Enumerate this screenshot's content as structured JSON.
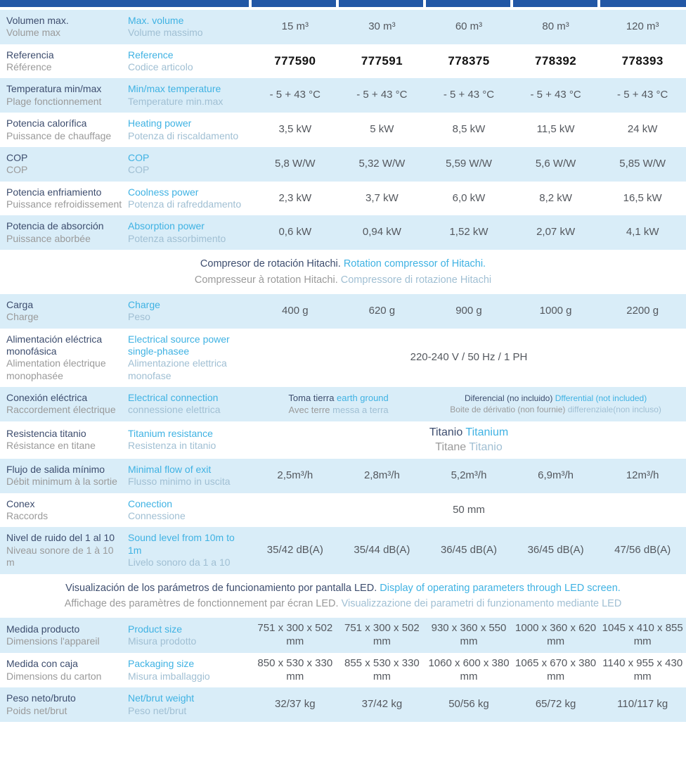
{
  "colors": {
    "header_bar": "#2257a5",
    "row_alt_blue": "#d9edf8",
    "label_spanish": "#3d4d6e",
    "label_french": "#9a9a9a",
    "label_english": "#3fb2e3",
    "label_italian": "#a0bfd3",
    "value_text": "#54585e",
    "reference_text": "#121212"
  },
  "table": {
    "data_column_count": 5,
    "rows": [
      {
        "kind": "spec",
        "bg": "blue",
        "label_es": "Volumen max.",
        "label_fr": "Volume max",
        "label_en": "Max. volume",
        "label_it": "Volume massimo",
        "values": [
          "15 m³",
          "30 m³",
          "60 m³",
          "80 m³",
          "120 m³"
        ]
      },
      {
        "kind": "spec",
        "bg": "white",
        "emphasis": true,
        "label_es": "Referencia",
        "label_fr": "Référence",
        "label_en": "Reference",
        "label_it": "Codice articolo",
        "values": [
          "777590",
          "777591",
          "778375",
          "778392",
          "778393"
        ]
      },
      {
        "kind": "spec",
        "bg": "blue",
        "label_es": "Temperatura min/max",
        "label_fr": "Plage fonctionnement",
        "label_en": "Min/max temperature",
        "label_it": "Temperature min.max",
        "values": [
          "- 5 + 43 °C",
          "- 5 + 43 °C",
          "- 5 + 43 °C",
          "- 5 + 43 °C",
          "- 5 + 43 °C"
        ]
      },
      {
        "kind": "spec",
        "bg": "white",
        "label_es": "Potencia calorífica",
        "label_fr": "Puissance de chauffage",
        "label_en": "Heating power",
        "label_it": "Potenza di riscaldamento",
        "values": [
          "3,5 kW",
          "5 kW",
          "8,5 kW",
          "11,5 kW",
          "24 kW"
        ]
      },
      {
        "kind": "spec",
        "bg": "blue",
        "label_es": "COP",
        "label_fr": "COP",
        "label_en": "COP",
        "label_it": "COP",
        "values": [
          "5,8 W/W",
          "5,32 W/W",
          "5,59 W/W",
          "5,6 W/W",
          "5,85 W/W"
        ]
      },
      {
        "kind": "spec",
        "bg": "white",
        "label_es": "Potencia enfriamiento",
        "label_fr": "Puissance refroidissement",
        "label_en": "Coolness power",
        "label_it": "Potenza di rafreddamento",
        "values": [
          "2,3 kW",
          "3,7 kW",
          "6,0 kW",
          "8,2 kW",
          "16,5 kW"
        ]
      },
      {
        "kind": "spec",
        "bg": "blue",
        "label_es": "Potencia de absorción",
        "label_fr": "Puissance aborbée",
        "label_en": "Absorption power",
        "label_it": "Potenza assorbimento",
        "values": [
          "0,6 kW",
          "0,94 kW",
          "1,52 kW",
          "2,07 kW",
          "4,1 kW"
        ]
      },
      {
        "kind": "note",
        "bg": "white",
        "name": "compressor-note",
        "lines": [
          [
            [
              "Compresor de rotación Hitachi. ",
              "es"
            ],
            [
              "Rotation compressor of Hitachi.",
              "en"
            ]
          ],
          [
            [
              "Compresseur à rotation Hitachi. ",
              "fr"
            ],
            [
              "Compressore di rotazione Hitachi",
              "it"
            ]
          ]
        ]
      },
      {
        "kind": "spec",
        "bg": "blue",
        "label_es": "Carga",
        "label_fr": "Charge",
        "label_en": "Charge",
        "label_it": "Peso",
        "values": [
          "400 g",
          "620 g",
          "900 g",
          "1000 g",
          "2200 g"
        ]
      },
      {
        "kind": "span",
        "bg": "white",
        "label_es": "Alimentación eléctrica monofásica",
        "label_fr": "Alimentation électrique monophasée",
        "label_en": "Electrical source power single-phasee",
        "label_it": "Alimentazione elettrica monofase",
        "value": "220-240 V / 50 Hz / 1 PH"
      },
      {
        "kind": "multi",
        "bg": "blue",
        "label_es": "Conexión eléctrica",
        "label_fr": "Raccordement électrique",
        "label_en": "Electrical connection",
        "label_it": "connessione elettrica",
        "cells": [
          {
            "span": 2,
            "size": "sm",
            "lines": [
              [
                [
                  "Toma tierra ",
                  "es"
                ],
                [
                  "earth ground",
                  "en"
                ]
              ],
              [
                [
                  "Avec terre ",
                  "fr"
                ],
                [
                  "messa a terra",
                  "it"
                ]
              ]
            ]
          },
          {
            "span": 3,
            "size": "xs",
            "lines": [
              [
                [
                  "Diferencial (no incluido) ",
                  "es"
                ],
                [
                  "Dfferential (not included)",
                  "en"
                ]
              ],
              [
                [
                  "Boite de dérivatio (non fournie)  ",
                  "fr"
                ],
                [
                  "differenziale(non incluso)",
                  "it"
                ]
              ]
            ]
          }
        ]
      },
      {
        "kind": "multi",
        "bg": "white",
        "label_es": "Resistencia titanio",
        "label_fr": "Résistance en titane",
        "label_en": "Titanium resistance",
        "label_it": "Resistenza in titanio",
        "cells": [
          {
            "span": 5,
            "size": "md",
            "lines": [
              [
                [
                  "Titanio ",
                  "es"
                ],
                [
                  "Titanium",
                  "en"
                ]
              ],
              [
                [
                  "Titane ",
                  "fr"
                ],
                [
                  "Titanio",
                  "it"
                ]
              ]
            ]
          }
        ]
      },
      {
        "kind": "spec",
        "bg": "blue",
        "label_es": "Flujo de salida mínimo",
        "label_fr": "Débit minimum à la sortie",
        "label_en": "Minimal flow of exit",
        "label_it": "Flusso minimo in uscita",
        "values": [
          "2,5m³/h",
          "2,8m³/h",
          "5,2m³/h",
          "6,9m³/h",
          "12m³/h"
        ]
      },
      {
        "kind": "span",
        "bg": "white",
        "label_es": "Conex",
        "label_fr": "Raccords",
        "label_en": "Conection",
        "label_it": "Connessione",
        "value": "50 mm"
      },
      {
        "kind": "spec",
        "bg": "blue",
        "label_es": "Nivel de ruido del 1 al 10",
        "label_fr": "Niveau sonore de 1 à 10 m",
        "label_en": "Sound level from 10m to 1m",
        "label_it": "Livelo sonoro da 1 a 10",
        "values": [
          "35/42 dB(A)",
          "35/44 dB(A)",
          "36/45 dB(A)",
          "36/45 dB(A)",
          "47/56 dB(A)"
        ]
      },
      {
        "kind": "note",
        "bg": "white",
        "name": "led-display-note",
        "lines": [
          [
            [
              "Visualización de los parámetros de funcionamiento por pantalla LED. ",
              "es"
            ],
            [
              "Display of operating parameters through LED screen.",
              "en"
            ]
          ],
          [
            [
              "Affichage des paramètres de fonctionnement par écran LED. ",
              "fr"
            ],
            [
              "Visualizzazione dei parametri di funzionamento mediante LED",
              "it"
            ]
          ]
        ]
      },
      {
        "kind": "spec",
        "bg": "blue",
        "label_es": "Medida producto",
        "label_fr": "Dimensions l'appareil",
        "label_en": "Product size",
        "label_it": "Misura prodotto",
        "values": [
          "751 x 300 x 502 mm",
          "751 x 300 x 502 mm",
          "930 x 360 x 550 mm",
          "1000 x 360 x 620 mm",
          "1045 x 410 x 855 mm"
        ]
      },
      {
        "kind": "spec",
        "bg": "white",
        "label_es": "Medida con caja",
        "label_fr": "Dimensions du carton",
        "label_en": "Packaging size",
        "label_it": "Misura imballaggio",
        "values": [
          "850 x 530 x 330 mm",
          "855 x 530 x 330 mm",
          "1060 x 600 x 380 mm",
          "1065 x 670 x 380 mm",
          "1140 x 955 x 430 mm"
        ]
      },
      {
        "kind": "spec",
        "bg": "blue",
        "label_es": "Peso neto/bruto",
        "label_fr": "Poids net/brut",
        "label_en": "Net/brut weight",
        "label_it": "Peso net/brut",
        "values": [
          "32/37 kg",
          "37/42 kg",
          "50/56 kg",
          "65/72 kg",
          "110/117 kg"
        ]
      }
    ]
  }
}
